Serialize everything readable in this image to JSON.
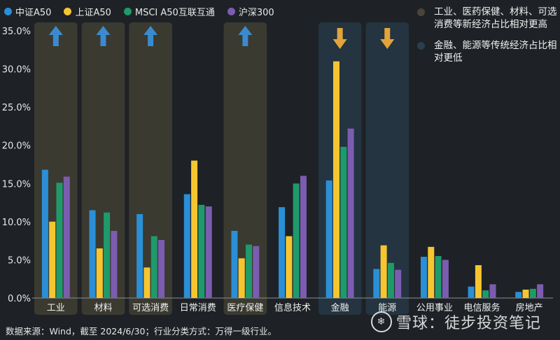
{
  "chart_data": {
    "type": "bar",
    "categories": [
      "工业",
      "材料",
      "可选消费",
      "日常消费",
      "医疗保健",
      "信息技术",
      "金融",
      "能源",
      "公用事业",
      "电信服务",
      "房地产"
    ],
    "series": [
      {
        "name": "中证A50",
        "color": "#2a8fd6",
        "values": [
          16.8,
          11.5,
          11.0,
          13.6,
          8.8,
          11.9,
          15.4,
          3.8,
          5.4,
          1.5,
          0.8
        ]
      },
      {
        "name": "上证A50",
        "color": "#f6c530",
        "values": [
          10.0,
          6.5,
          4.0,
          18.0,
          5.2,
          8.1,
          31.0,
          6.9,
          6.7,
          4.3,
          1.1
        ]
      },
      {
        "name": "MSCI A50互联互通",
        "color": "#1f9a6b",
        "values": [
          15.1,
          11.2,
          8.1,
          12.2,
          7.0,
          15.0,
          19.8,
          4.6,
          5.5,
          1.0,
          1.2
        ]
      },
      {
        "name": "沪深300",
        "color": "#7c5cb0",
        "values": [
          15.9,
          8.8,
          7.6,
          12.0,
          6.8,
          16.0,
          22.2,
          3.7,
          5.0,
          1.8,
          1.8
        ]
      }
    ],
    "ylim": [
      0,
      35
    ],
    "yticks": [
      "0.0%",
      "5.0%",
      "10.0%",
      "15.0%",
      "20.0%",
      "25.0%",
      "30.0%",
      "35.0%"
    ],
    "highlight_up": [
      "工业",
      "材料",
      "可选消费",
      "医疗保健"
    ],
    "highlight_down": [
      "金融",
      "能源"
    ],
    "colors": {
      "up_band": "#3a3a30",
      "down_band": "#243440",
      "up_arrow": "#3a8ad0",
      "down_arrow": "#e2a43a"
    }
  },
  "annotations": [
    {
      "text": "工业、医药保健、材料、可选消费等新经济占比相对更高",
      "color": "#4a4538"
    },
    {
      "text": "金融、能源等传统经济占比相对更低",
      "color": "#2c3e4c"
    }
  ],
  "footer": "数据来源：Wind，截至 2024/6/30；行业分类方式：万得一级行业。",
  "watermark": "雪球：徒步投资笔记"
}
